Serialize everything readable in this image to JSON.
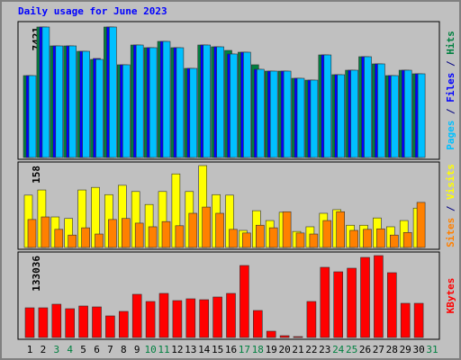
{
  "chart_data": {
    "type": "bar",
    "title": "Daily usage for June 2023",
    "title_color": "#0000ff",
    "separator": " / ",
    "categories": [
      "1",
      "2",
      "3",
      "4",
      "5",
      "6",
      "7",
      "8",
      "9",
      "10",
      "11",
      "12",
      "13",
      "14",
      "15",
      "16",
      "17",
      "18",
      "19",
      "20",
      "21",
      "22",
      "23",
      "24",
      "25",
      "26",
      "27",
      "28",
      "29",
      "30",
      "31"
    ],
    "category_colors": [
      "#000000",
      "#000000",
      "#008040",
      "#008040",
      "#000000",
      "#000000",
      "#000000",
      "#000000",
      "#000000",
      "#008040",
      "#008040",
      "#000000",
      "#000000",
      "#000000",
      "#000000",
      "#000000",
      "#008040",
      "#008040",
      "#000000",
      "#000000",
      "#000000",
      "#000000",
      "#000000",
      "#008040",
      "#008040",
      "#000000",
      "#000000",
      "#000000",
      "#000000",
      "#000000",
      "#008040"
    ],
    "panels": [
      {
        "ylim": [
          0,
          7421
        ],
        "yticks": [
          7421
        ],
        "series": [
          {
            "name": "Hits",
            "color": "#008040",
            "values": [
              4657,
              7421,
              6346,
              6346,
              6039,
              5579,
              7421,
              5272,
              6397,
              6244,
              6602,
              6244,
              5067,
              6397,
              6295,
              6090,
              5988,
              5272,
              4913,
              4913,
              4504,
              4401,
              5834,
              4709,
              4964,
              5732,
              5323,
              4657,
              4964,
              4760,
              0
            ]
          },
          {
            "name": "Files",
            "color": "#0000ff",
            "values": [
              4657,
              7421,
              6346,
              6346,
              6039,
              5630,
              7421,
              5272,
              6397,
              6244,
              6602,
              6244,
              5067,
              6397,
              6295,
              5886,
              5988,
              5016,
              4913,
              4913,
              4504,
              4401,
              5834,
              4709,
              4964,
              5732,
              5323,
              4657,
              4964,
              4760,
              0
            ]
          },
          {
            "name": "Pages",
            "color": "#00c0ff",
            "values": [
              4657,
              7421,
              6346,
              6346,
              6039,
              5579,
              7421,
              5272,
              6397,
              6244,
              6602,
              6244,
              5067,
              6397,
              6295,
              5886,
              5988,
              5016,
              4913,
              4913,
              4504,
              4401,
              5834,
              4709,
              4964,
              5732,
              5323,
              4657,
              4964,
              4760,
              0
            ]
          }
        ]
      },
      {
        "ylim": [
          0,
          158
        ],
        "yticks": [
          158
        ],
        "series": [
          {
            "name": "Visits",
            "color": "#ffff00",
            "values": [
              101,
              111,
              59,
              56,
              111,
              116,
              102,
              120,
              108,
              83,
              108,
              142,
              108,
              158,
              102,
              101,
              33,
              71,
              52,
              68,
              31,
              40,
              66,
              73,
              43,
              43,
              57,
              40,
              52,
              76,
              0
            ]
          },
          {
            "name": "Sites",
            "color": "#ff8000",
            "values": [
              54,
              59,
              35,
              24,
              38,
              26,
              54,
              56,
              47,
              40,
              50,
              42,
              66,
              78,
              66,
              35,
              28,
              43,
              38,
              69,
              28,
              26,
              52,
              69,
              33,
              35,
              36,
              24,
              29,
              87,
              0
            ]
          }
        ]
      },
      {
        "ylim": [
          0,
          133036
        ],
        "yticks": [
          133036
        ],
        "series": [
          {
            "name": "KBytes",
            "color": "#ff0000",
            "values": [
              48244,
              48244,
              54091,
              46782,
              51168,
              49706,
              35086,
              42396,
              70171,
              58477,
              71633,
              59939,
              62862,
              61400,
              65786,
              71633,
              116955,
              43858,
              10234,
              2924,
              1462,
              58477,
              114031,
              106721,
              112569,
              130112,
              133036,
              105259,
              55553,
              55553,
              0
            ]
          }
        ]
      }
    ]
  }
}
